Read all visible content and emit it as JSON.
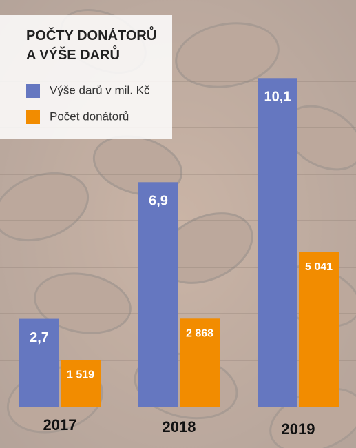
{
  "chart_data": {
    "type": "bar",
    "title": "POČTY DONÁTORŮ A VÝŠE DARŮ",
    "categories": [
      "2017",
      "2018",
      "2019"
    ],
    "series": [
      {
        "name": "Výše darů v mil. Kč",
        "color": "#6577c0",
        "values": [
          2.7,
          6.9,
          10.1
        ],
        "value_labels": [
          "2,7",
          "6,9",
          "10,1"
        ]
      },
      {
        "name": "Počet donátorů",
        "color": "#f28c00",
        "axis": "y2",
        "values": [
          1519,
          2868,
          5041
        ],
        "value_labels": [
          "1 519",
          "2 868",
          "5 041"
        ]
      }
    ],
    "ylim": [
      0,
      10
    ],
    "y2lim": [
      0,
      10600
    ],
    "legend": "top-left"
  }
}
